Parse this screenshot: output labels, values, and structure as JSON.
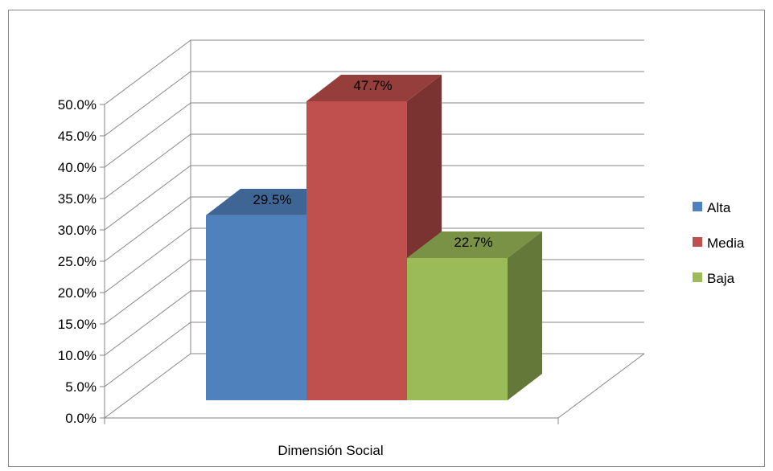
{
  "chart_data": {
    "type": "bar",
    "categories": [
      "Dimensión Social"
    ],
    "series": [
      {
        "name": "Alta",
        "values": [
          29.5
        ],
        "color": "#4F81BD",
        "label": "29.5%"
      },
      {
        "name": "Media",
        "values": [
          47.7
        ],
        "color": "#C0504D",
        "label": "47.7%"
      },
      {
        "name": "Baja",
        "values": [
          22.7
        ],
        "color": "#9BBB59",
        "label": "22.7%"
      }
    ],
    "title": "",
    "xlabel": "",
    "ylabel": "",
    "ylim": [
      0,
      50
    ],
    "yticks": [
      "0.0%",
      "5.0%",
      "10.0%",
      "15.0%",
      "20.0%",
      "25.0%",
      "30.0%",
      "35.0%",
      "40.0%",
      "45.0%",
      "50.0%"
    ],
    "grid": true,
    "legend": "right",
    "style": "3d-clustered-column"
  }
}
